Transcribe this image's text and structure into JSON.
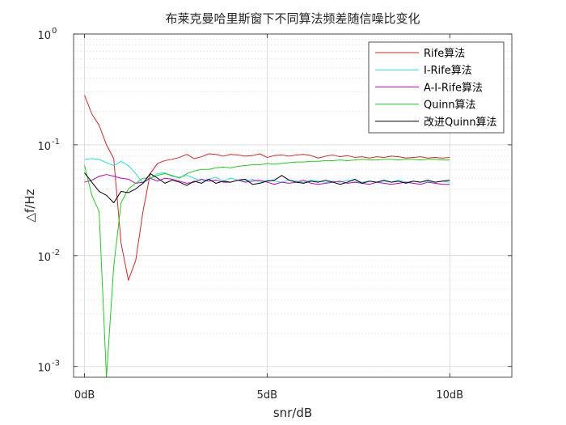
{
  "chart_data": {
    "type": "line",
    "title": "布莱克曼哈里斯窗下不同算法频差随信噪比变化",
    "xlabel": "snr/dB",
    "ylabel": "△f/Hz",
    "xscale": "linear",
    "yscale": "log",
    "xlim": [
      -0.3,
      11.7
    ],
    "ylim": [
      0.0008,
      1
    ],
    "grid": true,
    "minor_grid": true,
    "legend_position": "top-right",
    "x_ticks": [
      {
        "value": 0,
        "label": "0dB"
      },
      {
        "value": 5,
        "label": "5dB"
      },
      {
        "value": 10,
        "label": "10dB"
      }
    ],
    "y_ticks": [
      {
        "value": 0.001,
        "base": "10",
        "exp": "-3"
      },
      {
        "value": 0.01,
        "base": "10",
        "exp": "-2"
      },
      {
        "value": 0.1,
        "base": "10",
        "exp": "-1"
      },
      {
        "value": 1,
        "base": "10",
        "exp": "0"
      }
    ],
    "x": [
      0,
      0.2,
      0.4,
      0.6,
      0.8,
      1.0,
      1.2,
      1.4,
      1.6,
      1.8,
      2.0,
      2.2,
      2.4,
      2.6,
      2.8,
      3.0,
      3.2,
      3.4,
      3.6,
      3.8,
      4.0,
      4.2,
      4.4,
      4.6,
      4.8,
      5.0,
      5.2,
      5.4,
      5.6,
      5.8,
      6.0,
      6.2,
      6.4,
      6.6,
      6.8,
      7.0,
      7.2,
      7.4,
      7.6,
      7.8,
      8.0,
      8.2,
      8.4,
      8.6,
      8.8,
      9.0,
      9.2,
      9.4,
      9.6,
      9.8,
      10.0
    ],
    "series": [
      {
        "name": "Rife算法",
        "color": "#d62728",
        "values": [
          0.28,
          0.19,
          0.15,
          0.1,
          0.075,
          0.013,
          0.006,
          0.009,
          0.025,
          0.055,
          0.068,
          0.072,
          0.074,
          0.077,
          0.082,
          0.075,
          0.078,
          0.083,
          0.082,
          0.079,
          0.082,
          0.081,
          0.079,
          0.08,
          0.083,
          0.077,
          0.08,
          0.081,
          0.079,
          0.081,
          0.082,
          0.08,
          0.076,
          0.079,
          0.081,
          0.078,
          0.08,
          0.077,
          0.078,
          0.076,
          0.078,
          0.077,
          0.079,
          0.078,
          0.076,
          0.077,
          0.078,
          0.076,
          0.077,
          0.076,
          0.077
        ]
      },
      {
        "name": "I-Rife算法",
        "color": "#20e0e0",
        "values": [
          0.074,
          0.075,
          0.074,
          0.069,
          0.065,
          0.071,
          0.065,
          0.055,
          0.045,
          0.05,
          0.055,
          0.056,
          0.052,
          0.051,
          0.053,
          0.05,
          0.047,
          0.049,
          0.051,
          0.047,
          0.05,
          0.048,
          0.047,
          0.049,
          0.046,
          0.048,
          0.047,
          0.046,
          0.048,
          0.047,
          0.046,
          0.048,
          0.047,
          0.046,
          0.047,
          0.046,
          0.048,
          0.047,
          0.046,
          0.047,
          0.046,
          0.047,
          0.046,
          0.048,
          0.046,
          0.047,
          0.046,
          0.047,
          0.046,
          0.047,
          0.046
        ]
      },
      {
        "name": "A-I-Rife算法",
        "color": "#c000c0",
        "values": [
          0.046,
          0.048,
          0.052,
          0.054,
          0.052,
          0.05,
          0.049,
          0.045,
          0.046,
          0.05,
          0.047,
          0.05,
          0.049,
          0.047,
          0.045,
          0.046,
          0.049,
          0.047,
          0.048,
          0.046,
          0.046,
          0.048,
          0.046,
          0.047,
          0.048,
          0.046,
          0.044,
          0.046,
          0.045,
          0.046,
          0.048,
          0.045,
          0.044,
          0.045,
          0.046,
          0.047,
          0.045,
          0.046,
          0.045,
          0.044,
          0.046,
          0.045,
          0.044,
          0.045,
          0.046,
          0.045,
          0.044,
          0.046,
          0.045,
          0.044,
          0.044
        ]
      },
      {
        "name": "Quinn算法",
        "color": "#22cc22",
        "values": [
          0.065,
          0.035,
          0.025,
          0.0008,
          0.008,
          0.03,
          0.04,
          0.045,
          0.05,
          0.05,
          0.053,
          0.055,
          0.053,
          0.05,
          0.055,
          0.058,
          0.06,
          0.06,
          0.062,
          0.063,
          0.062,
          0.064,
          0.065,
          0.066,
          0.066,
          0.068,
          0.067,
          0.068,
          0.069,
          0.07,
          0.07,
          0.071,
          0.071,
          0.072,
          0.072,
          0.073,
          0.072,
          0.073,
          0.074,
          0.073,
          0.073,
          0.074,
          0.074,
          0.073,
          0.074,
          0.074,
          0.073,
          0.074,
          0.074,
          0.073,
          0.073
        ]
      },
      {
        "name": "改进Quinn算法",
        "color": "#000000",
        "values": [
          0.056,
          0.046,
          0.038,
          0.035,
          0.03,
          0.038,
          0.037,
          0.04,
          0.045,
          0.055,
          0.05,
          0.045,
          0.048,
          0.046,
          0.043,
          0.047,
          0.045,
          0.049,
          0.045,
          0.047,
          0.046,
          0.048,
          0.049,
          0.044,
          0.045,
          0.047,
          0.048,
          0.053,
          0.048,
          0.046,
          0.045,
          0.047,
          0.046,
          0.048,
          0.046,
          0.044,
          0.046,
          0.049,
          0.045,
          0.047,
          0.046,
          0.048,
          0.046,
          0.047,
          0.045,
          0.047,
          0.046,
          0.048,
          0.046,
          0.047,
          0.048
        ]
      }
    ]
  }
}
